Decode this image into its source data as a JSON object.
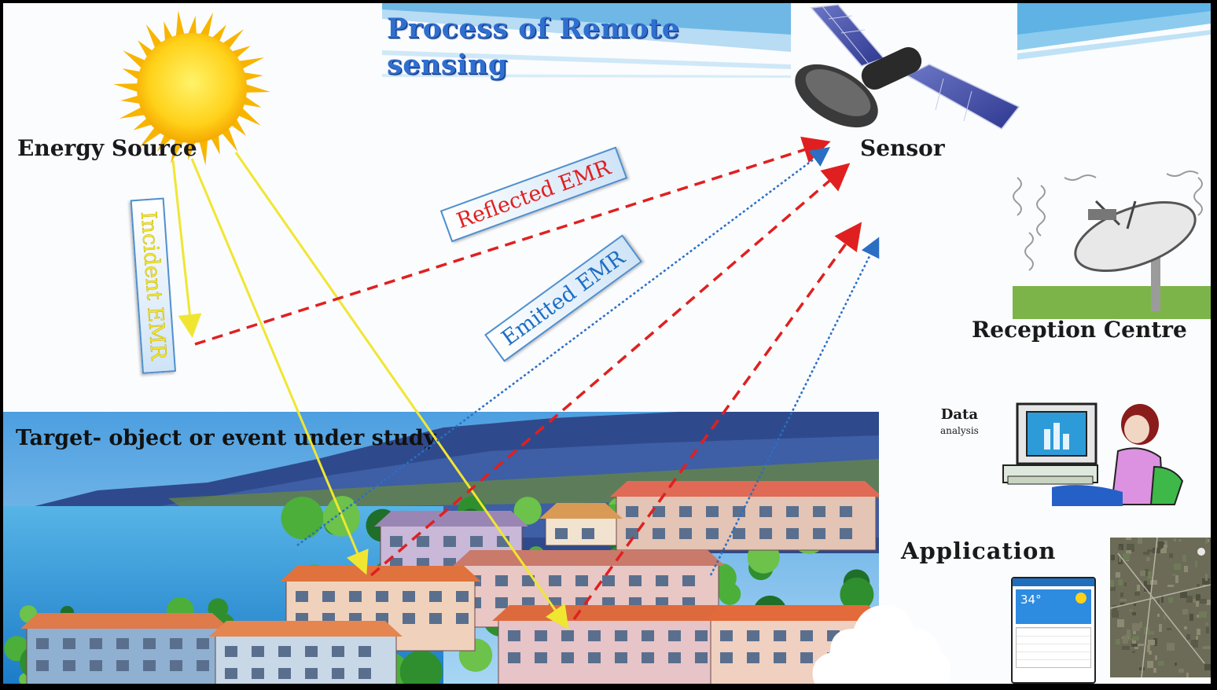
{
  "title_line1": "Process of Remote",
  "title_line2": "sensing",
  "labels": {
    "energy_source": "Energy Source",
    "sensor": "Sensor",
    "reception_centre": "Reception Centre",
    "target": "Target- object or event under study",
    "data_analysis_line1": "Data",
    "data_analysis_line2": "analysis",
    "application": "Application"
  },
  "arrow_tags": {
    "incident": "Incident EMR",
    "reflected": "Reflected EMR",
    "emitted": "Emitted EMR"
  },
  "phone": {
    "temperature": "34°"
  },
  "colors": {
    "title_blue": "#2f6fd0",
    "incident_arrow": "#f0e632",
    "reflected_arrow": "#e02020",
    "emitted_arrow": "#2a6fc4",
    "sea": "#3fa4dc",
    "mountain": "#2f4a8c"
  },
  "icons": [
    "sun-icon",
    "satellite-icon",
    "satellite-dish-icon",
    "computer-user-icon",
    "weather-phone-icon",
    "satellite-map-icon"
  ]
}
